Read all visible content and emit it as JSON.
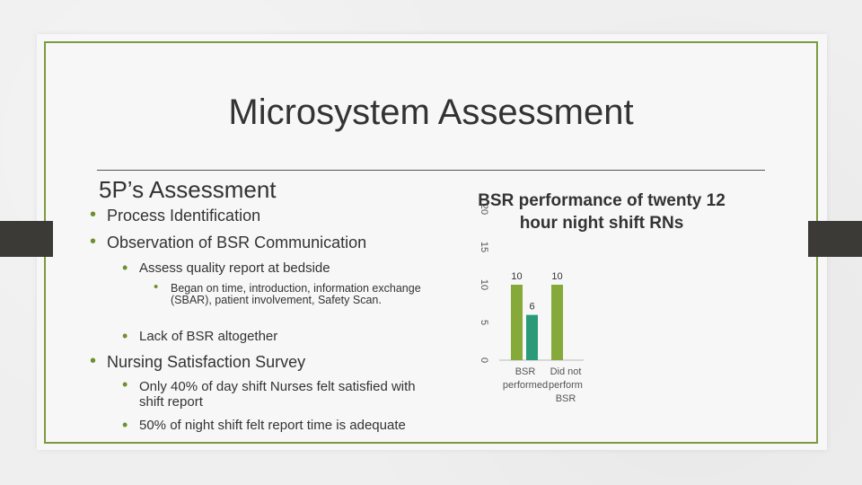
{
  "slide": {
    "title": "Microsystem Assessment",
    "subheading": "5P’s Assessment",
    "colors": {
      "accent": "#7d9a3f",
      "bullet": "#6f8f2f",
      "bar_dark": "#2a9a78",
      "bar_light": "#86aa3a",
      "tab": "#3b3a36"
    }
  },
  "bullets": [
    {
      "level": 1,
      "text": "Process Identification"
    },
    {
      "level": 1,
      "text": "Observation of BSR Communication"
    },
    {
      "level": 2,
      "text": "Assess quality report at bedside"
    },
    {
      "level": 3,
      "text": "Began on time, introduction, information exchange (SBAR), patient involvement, Safety Scan."
    },
    {
      "level": 2,
      "text": "Lack of BSR altogether"
    },
    {
      "level": 1,
      "text": "Nursing Satisfaction Survey"
    },
    {
      "level": 2,
      "text": "Only 40% of day shift Nurses felt satisfied with shift report"
    },
    {
      "level": 2,
      "text": "50% of night shift felt report time is adequate"
    }
  ],
  "chart_data": {
    "type": "bar",
    "title": "BSR performance of twenty 12 hour night shift RNs",
    "categories": [
      "BSR performed",
      "Did not perform BSR"
    ],
    "series": [
      {
        "values": [
          10,
          10
        ]
      },
      {
        "values": [
          6,
          0
        ]
      }
    ],
    "ylim": [
      0,
      20
    ],
    "yticks": [
      "0",
      "5",
      "10",
      "15",
      "20"
    ],
    "data_labels": [
      "10",
      "6",
      "10"
    ]
  }
}
